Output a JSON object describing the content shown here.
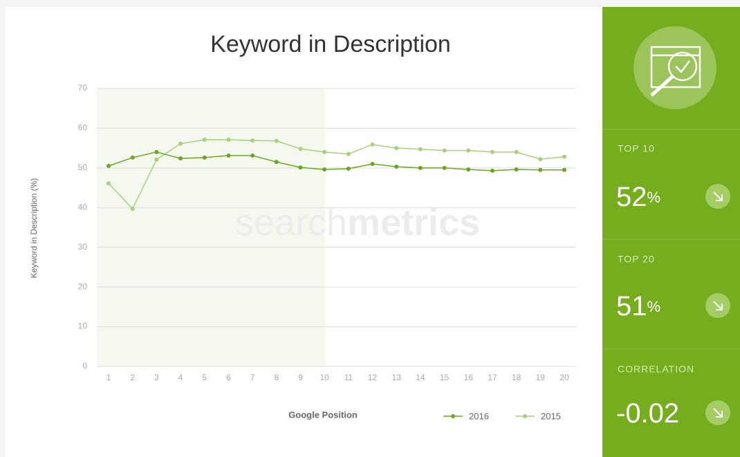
{
  "chart_data": {
    "type": "line",
    "title": "Keyword in Description",
    "x_label": "Google Position",
    "y_label": "Keyword in Description (%)",
    "categories": [
      "1",
      "2",
      "3",
      "4",
      "5",
      "6",
      "7",
      "8",
      "9",
      "10",
      "11",
      "12",
      "13",
      "14",
      "15",
      "16",
      "17",
      "18",
      "19",
      "20"
    ],
    "series": [
      {
        "name": "2016",
        "color": "#6ea51f",
        "values": [
          50.5,
          52.6,
          54.0,
          52.4,
          52.6,
          53.1,
          53.1,
          51.5,
          50.1,
          49.6,
          49.8,
          51.0,
          50.3,
          50.0,
          50.0,
          49.6,
          49.3,
          49.6,
          49.5,
          49.5
        ]
      },
      {
        "name": "2015",
        "color": "#a8d07a",
        "values": [
          46.1,
          39.7,
          52.1,
          56.1,
          57.1,
          57.1,
          56.9,
          56.8,
          54.8,
          54.0,
          53.5,
          55.9,
          55.0,
          54.7,
          54.4,
          54.4,
          54.0,
          54.0,
          52.2,
          52.8
        ]
      }
    ],
    "ylim": [
      0,
      70
    ],
    "yticks": [
      0,
      10,
      20,
      30,
      40,
      50,
      60,
      70
    ],
    "grid": true,
    "watermark": [
      "search",
      "metrics"
    ]
  },
  "panel": [
    {
      "label": "TOP 10",
      "value": "52",
      "unit": "%"
    },
    {
      "label": "TOP 20",
      "value": "51",
      "unit": "%"
    },
    {
      "label": "CORRELATION",
      "value": "-0.02"
    }
  ]
}
